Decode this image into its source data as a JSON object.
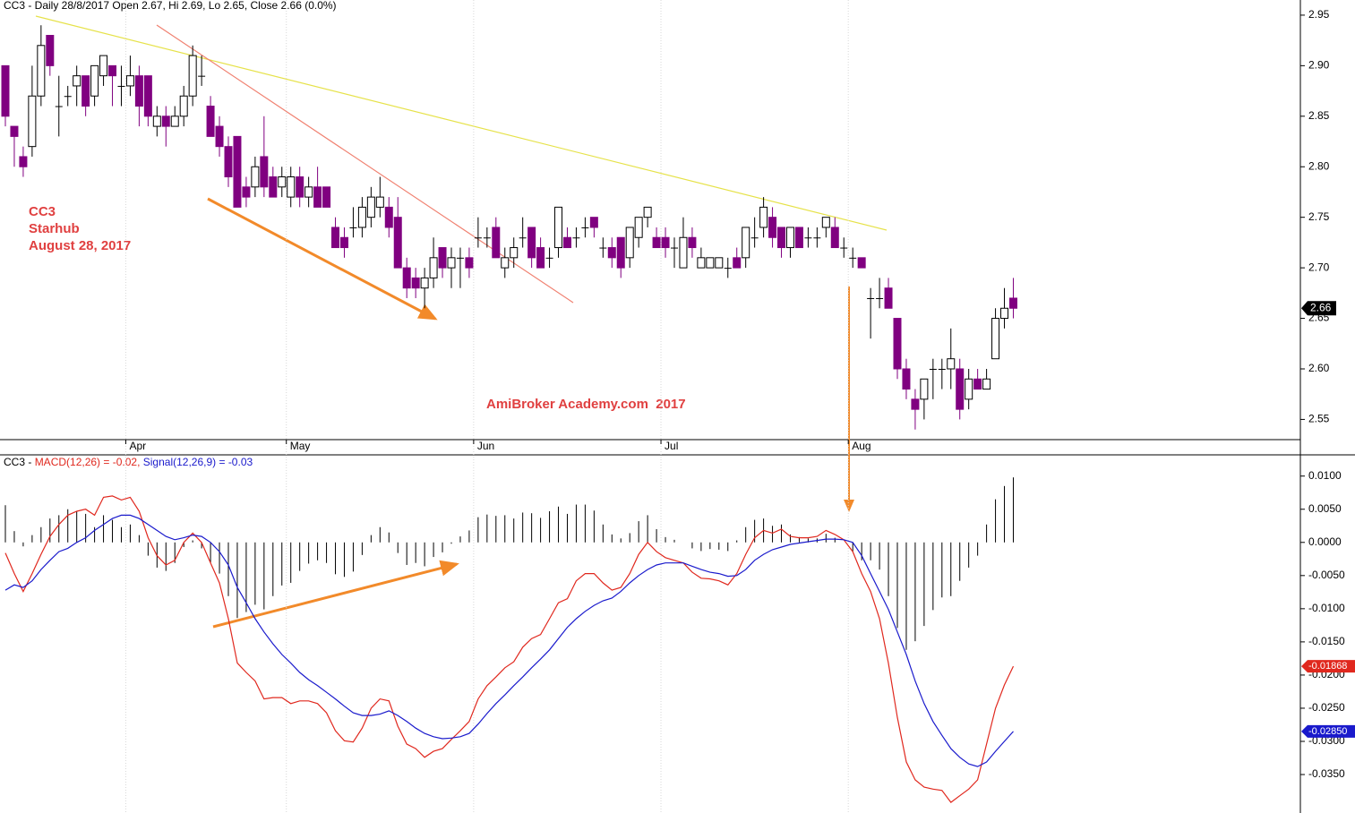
{
  "chart_data": [
    {
      "type": "candlestick",
      "title": "CC3 - Daily 28/8/2017 Open 2.67, Hi 2.69, Lo 2.65, Close 2.66 (0.0%)",
      "annotations": [
        "CC3",
        "Starhub",
        "August 28, 2017",
        "AmiBroker Academy.com  2017"
      ],
      "x": [
        null,
        null,
        null,
        null,
        null,
        null,
        null,
        null,
        null,
        null,
        null,
        null,
        null,
        null,
        "Apr",
        null,
        null,
        null,
        null,
        null,
        null,
        null,
        null,
        null,
        null,
        null,
        null,
        null,
        null,
        null,
        null,
        null,
        "May",
        null,
        null,
        null,
        null,
        null,
        null,
        null,
        null,
        null,
        null,
        null,
        null,
        null,
        null,
        null,
        null,
        null,
        null,
        null,
        null,
        "Jun",
        null,
        null,
        null,
        null,
        null,
        null,
        null,
        null,
        null,
        null,
        null,
        null,
        null,
        null,
        null,
        null,
        null,
        null,
        null,
        null,
        "Jul",
        null,
        null,
        null,
        null,
        null,
        null,
        null,
        null,
        null,
        null,
        null,
        null,
        null,
        null,
        null,
        null,
        null,
        null,
        null,
        null,
        "Aug",
        null,
        null,
        null,
        null,
        null,
        null,
        null,
        null,
        null,
        null,
        null,
        null,
        null,
        null,
        null,
        null,
        null,
        null
      ],
      "open": [
        2.9,
        2.84,
        2.81,
        2.82,
        2.87,
        2.93,
        2.86,
        2.87,
        2.88,
        2.89,
        2.87,
        2.89,
        2.9,
        2.88,
        2.88,
        2.89,
        2.89,
        2.84,
        2.85,
        2.84,
        2.85,
        2.87,
        2.89,
        2.86,
        2.84,
        2.82,
        2.83,
        2.78,
        2.78,
        2.81,
        2.79,
        2.78,
        2.77,
        2.79,
        2.77,
        2.78,
        2.78,
        2.74,
        2.73,
        2.74,
        2.74,
        2.75,
        2.76,
        2.76,
        2.75,
        2.7,
        2.69,
        2.68,
        2.69,
        2.72,
        2.7,
        2.71,
        2.71,
        2.73,
        2.73,
        2.74,
        2.7,
        2.71,
        2.73,
        2.74,
        2.72,
        2.71,
        2.72,
        2.73,
        2.73,
        2.74,
        2.75,
        2.72,
        2.72,
        2.73,
        2.71,
        2.73,
        2.75,
        2.73,
        2.73,
        2.72,
        2.7,
        2.73,
        2.7,
        2.7,
        2.7,
        2.7,
        2.71,
        2.71,
        2.73,
        2.74,
        2.75,
        2.74,
        2.72,
        2.74,
        2.73,
        2.73,
        2.74,
        2.74,
        2.72,
        2.71,
        2.71,
        2.67,
        2.67,
        2.68,
        2.65,
        2.6,
        2.57,
        2.57,
        2.6,
        2.6,
        2.6,
        2.6,
        2.57,
        2.59,
        2.58,
        2.61,
        2.65,
        2.67
      ],
      "high": [
        2.9,
        2.84,
        2.82,
        2.9,
        2.94,
        2.93,
        2.89,
        2.88,
        2.9,
        2.89,
        2.9,
        2.91,
        2.9,
        2.9,
        2.91,
        2.9,
        2.89,
        2.86,
        2.86,
        2.86,
        2.88,
        2.92,
        2.91,
        2.87,
        2.85,
        2.83,
        2.83,
        2.79,
        2.81,
        2.85,
        2.8,
        2.8,
        2.8,
        2.8,
        2.79,
        2.8,
        2.78,
        2.75,
        2.74,
        2.76,
        2.77,
        2.78,
        2.79,
        2.77,
        2.77,
        2.71,
        2.7,
        2.7,
        2.73,
        2.72,
        2.72,
        2.72,
        2.72,
        2.75,
        2.74,
        2.75,
        2.72,
        2.73,
        2.75,
        2.74,
        2.73,
        2.72,
        2.76,
        2.74,
        2.74,
        2.75,
        2.75,
        2.73,
        2.73,
        2.73,
        2.74,
        2.75,
        2.76,
        2.74,
        2.74,
        2.73,
        2.75,
        2.74,
        2.72,
        2.71,
        2.71,
        2.71,
        2.72,
        2.74,
        2.75,
        2.77,
        2.76,
        2.74,
        2.74,
        2.74,
        2.74,
        2.74,
        2.75,
        2.75,
        2.73,
        2.72,
        2.71,
        2.68,
        2.69,
        2.69,
        2.65,
        2.61,
        2.58,
        2.59,
        2.61,
        2.61,
        2.64,
        2.61,
        2.6,
        2.6,
        2.6,
        2.66,
        2.68,
        2.69
      ],
      "low": [
        2.84,
        2.8,
        2.79,
        2.81,
        2.86,
        2.89,
        2.83,
        2.86,
        2.86,
        2.85,
        2.86,
        2.88,
        2.86,
        2.86,
        2.87,
        2.84,
        2.84,
        2.83,
        2.82,
        2.84,
        2.84,
        2.86,
        2.88,
        2.83,
        2.81,
        2.78,
        2.76,
        2.76,
        2.77,
        2.77,
        2.77,
        2.77,
        2.76,
        2.76,
        2.76,
        2.76,
        2.76,
        2.72,
        2.71,
        2.73,
        2.73,
        2.74,
        2.75,
        2.73,
        2.7,
        2.67,
        2.67,
        2.66,
        2.68,
        2.69,
        2.68,
        2.68,
        2.69,
        2.72,
        2.72,
        2.71,
        2.69,
        2.7,
        2.72,
        2.7,
        2.7,
        2.7,
        2.71,
        2.72,
        2.72,
        2.73,
        2.73,
        2.71,
        2.7,
        2.69,
        2.7,
        2.72,
        2.74,
        2.72,
        2.71,
        2.7,
        2.7,
        2.71,
        2.7,
        2.7,
        2.7,
        2.69,
        2.7,
        2.7,
        2.72,
        2.73,
        2.72,
        2.71,
        2.71,
        2.72,
        2.72,
        2.72,
        2.73,
        2.72,
        2.71,
        2.7,
        2.7,
        2.63,
        2.66,
        2.66,
        2.59,
        2.57,
        2.54,
        2.55,
        2.57,
        2.58,
        2.58,
        2.55,
        2.56,
        2.58,
        2.58,
        2.61,
        2.64,
        2.65
      ],
      "close": [
        2.85,
        2.83,
        2.8,
        2.87,
        2.92,
        2.9,
        2.86,
        2.87,
        2.89,
        2.86,
        2.9,
        2.91,
        2.89,
        2.88,
        2.89,
        2.86,
        2.85,
        2.85,
        2.84,
        2.85,
        2.87,
        2.91,
        2.89,
        2.83,
        2.82,
        2.79,
        2.76,
        2.77,
        2.8,
        2.78,
        2.77,
        2.79,
        2.79,
        2.77,
        2.78,
        2.76,
        2.76,
        2.72,
        2.72,
        2.74,
        2.76,
        2.77,
        2.77,
        2.74,
        2.7,
        2.68,
        2.68,
        2.69,
        2.71,
        2.7,
        2.71,
        2.71,
        2.7,
        2.73,
        2.73,
        2.71,
        2.71,
        2.72,
        2.73,
        2.71,
        2.7,
        2.71,
        2.76,
        2.72,
        2.73,
        2.74,
        2.74,
        2.72,
        2.71,
        2.7,
        2.74,
        2.75,
        2.76,
        2.72,
        2.72,
        2.72,
        2.73,
        2.72,
        2.71,
        2.71,
        2.71,
        2.7,
        2.7,
        2.74,
        2.73,
        2.76,
        2.73,
        2.72,
        2.74,
        2.72,
        2.73,
        2.73,
        2.75,
        2.72,
        2.72,
        2.71,
        2.7,
        2.67,
        2.67,
        2.66,
        2.6,
        2.58,
        2.56,
        2.59,
        2.6,
        2.6,
        2.61,
        2.56,
        2.59,
        2.58,
        2.59,
        2.65,
        2.66,
        2.66
      ],
      "up_color": "#ffffff",
      "down_color": "#800080",
      "ylim": [
        2.53,
        2.965
      ],
      "yticks": [
        2.55,
        {
          "value": 2.6,
          "label": "2.60"
        },
        2.65,
        {
          "value": 2.7,
          "label": "2.70"
        },
        2.75,
        {
          "value": 2.8,
          "label": "2.80"
        },
        2.85,
        {
          "value": 2.9,
          "label": "2.90"
        },
        2.95
      ]
    },
    {
      "type": "macd",
      "title": "CC3 -",
      "ylim": [
        -0.0408,
        0.0132
      ],
      "yticks": [
        {
          "value": -0.035,
          "label": "-0.0350"
        },
        {
          "value": -0.03,
          "label": "-0.0300"
        },
        {
          "value": -0.025,
          "label": "-0.0250"
        },
        {
          "value": -0.02,
          "label": "-0.0200"
        },
        {
          "value": -0.015,
          "label": "-0.0150"
        },
        {
          "value": -0.01,
          "label": "-0.0100"
        },
        {
          "value": -0.005,
          "label": "-0.0050"
        },
        {
          "value": 0,
          "label": "0.0000"
        },
        {
          "value": 0.005,
          "label": "0.0050"
        },
        {
          "value": 0.01,
          "label": "0.0100"
        }
      ],
      "series": [
        {
          "name": "MACD(12,26) = -0.02,",
          "color": "#e0281e",
          "last_value_label": "-0.01868",
          "values": [
            -0.0016,
            -0.0047,
            -0.0074,
            -0.0047,
            -0.0018,
            0.0009,
            0.0027,
            0.0041,
            0.0047,
            0.005,
            0.0041,
            0.0068,
            0.007,
            0.0064,
            0.0068,
            0.0047,
            0.0007,
            -0.002,
            -0.0034,
            -0.0027,
            0,
            0.0014,
            0,
            -0.0031,
            -0.0061,
            -0.0115,
            -0.0182,
            -0.0196,
            -0.0209,
            -0.0236,
            -0.0234,
            -0.0234,
            -0.0243,
            -0.0239,
            -0.0239,
            -0.0243,
            -0.0257,
            -0.0284,
            -0.0299,
            -0.0301,
            -0.028,
            -0.025,
            -0.0236,
            -0.0239,
            -0.0277,
            -0.0304,
            -0.0311,
            -0.0324,
            -0.0315,
            -0.0311,
            -0.0297,
            -0.0284,
            -0.027,
            -0.0236,
            -0.0216,
            -0.0203,
            -0.0189,
            -0.018,
            -0.0158,
            -0.0145,
            -0.0139,
            -0.0115,
            -0.0091,
            -0.0085,
            -0.0058,
            -0.0047,
            -0.0047,
            -0.0061,
            -0.0072,
            -0.0068,
            -0.0047,
            -0.0018,
            0,
            -0.0014,
            -0.0023,
            -0.0027,
            -0.0031,
            -0.0045,
            -0.0054,
            -0.0055,
            -0.0058,
            -0.0064,
            -0.0047,
            -0.0018,
            0.0007,
            0.0018,
            0.0014,
            0.002,
            0.0009,
            0.0007,
            0.0007,
            0.0009,
            0.0018,
            0.0012,
            0.0004,
            -0.0014,
            -0.0047,
            -0.0074,
            -0.0115,
            -0.0182,
            -0.0264,
            -0.0331,
            -0.0358,
            -0.0369,
            -0.0372,
            -0.0374,
            -0.0392,
            -0.0382,
            -0.0372,
            -0.0358,
            -0.0304,
            -0.025,
            -0.0215,
            -0.01868
          ]
        },
        {
          "name": "Signal(12,26,9) = -0.03",
          "color": "#1a1acc",
          "last_value_label": "-0.02850",
          "values": [
            -0.0072,
            -0.0064,
            -0.0068,
            -0.0058,
            -0.0041,
            -0.0027,
            -0.0014,
            -0.0009,
            0,
            0.0007,
            0.0018,
            0.0027,
            0.0036,
            0.0041,
            0.0041,
            0.0036,
            0.0027,
            0.0018,
            0.0009,
            0.0004,
            0.0007,
            0.0011,
            0.0009,
            0,
            -0.0014,
            -0.0034,
            -0.0068,
            -0.0091,
            -0.0115,
            -0.0135,
            -0.0153,
            -0.0169,
            -0.0182,
            -0.0196,
            -0.0207,
            -0.0216,
            -0.0226,
            -0.0236,
            -0.0247,
            -0.0257,
            -0.0261,
            -0.0261,
            -0.0259,
            -0.0254,
            -0.0261,
            -0.027,
            -0.028,
            -0.0288,
            -0.0293,
            -0.0296,
            -0.0295,
            -0.0293,
            -0.0288,
            -0.0274,
            -0.0258,
            -0.0243,
            -0.023,
            -0.0216,
            -0.0203,
            -0.0189,
            -0.0176,
            -0.0162,
            -0.0145,
            -0.0128,
            -0.0115,
            -0.0104,
            -0.0095,
            -0.0088,
            -0.0084,
            -0.0074,
            -0.0061,
            -0.005,
            -0.0041,
            -0.0034,
            -0.0031,
            -0.0031,
            -0.0031,
            -0.0036,
            -0.0041,
            -0.0045,
            -0.0047,
            -0.0051,
            -0.005,
            -0.0041,
            -0.0027,
            -0.0018,
            -0.0011,
            -0.0007,
            -0.0003,
            -0.0001,
            0.0001,
            0.0003,
            0.0005,
            0.0005,
            0.0004,
            0,
            -0.002,
            -0.0047,
            -0.0074,
            -0.0101,
            -0.0135,
            -0.0169,
            -0.0209,
            -0.0243,
            -0.027,
            -0.0291,
            -0.0311,
            -0.0324,
            -0.0334,
            -0.0338,
            -0.0331,
            -0.0315,
            -0.03,
            -0.0285
          ]
        },
        {
          "kind": "histogram",
          "color": "#000000",
          "values": [
            0.0056,
            0.0017,
            -0.0006,
            0.0011,
            0.0023,
            0.0036,
            0.0041,
            0.005,
            0.0047,
            0.0043,
            0.0023,
            0.0041,
            0.0034,
            0.0023,
            0.0027,
            0.0011,
            -0.002,
            -0.0038,
            -0.0043,
            -0.0031,
            -0.0007,
            0.0003,
            -0.0009,
            -0.0031,
            -0.0047,
            -0.0081,
            -0.0114,
            -0.0105,
            -0.0094,
            -0.0101,
            -0.0081,
            -0.0065,
            -0.0061,
            -0.0043,
            -0.0032,
            -0.0027,
            -0.0031,
            -0.0048,
            -0.0052,
            -0.0044,
            -0.0019,
            0.0011,
            0.0023,
            0.0015,
            -0.0016,
            -0.0034,
            -0.0031,
            -0.0036,
            -0.0022,
            -0.0015,
            -0.0002,
            0.0009,
            0.0018,
            0.0038,
            0.0042,
            0.004,
            0.0041,
            0.0036,
            0.0045,
            0.0044,
            0.0037,
            0.0047,
            0.0054,
            0.0043,
            0.0057,
            0.0057,
            0.0048,
            0.0027,
            0.0012,
            0.0006,
            0.0014,
            0.0032,
            0.0041,
            0.002,
            0.0008,
            0.0004,
            0,
            -0.0009,
            -0.0013,
            -0.001,
            -0.0011,
            -0.0013,
            0.0003,
            0.0023,
            0.0034,
            0.0036,
            0.0025,
            0.0027,
            0.0012,
            0.0008,
            0.0006,
            0.0006,
            0.0013,
            0.0007,
            0,
            -0.0014,
            -0.0027,
            -0.0027,
            -0.0041,
            -0.0081,
            -0.0129,
            -0.0162,
            -0.0149,
            -0.0126,
            -0.0102,
            -0.0083,
            -0.0081,
            -0.0058,
            -0.0038,
            -0.002,
            0.0027,
            0.0065,
            0.0085,
            0.0098
          ]
        }
      ]
    }
  ]
}
